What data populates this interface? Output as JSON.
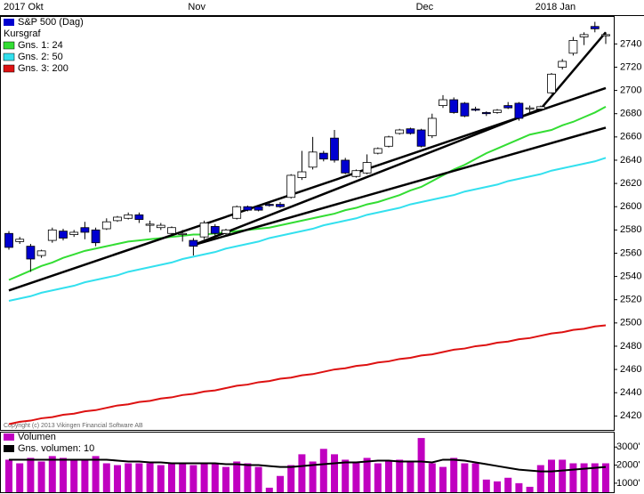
{
  "chart_data": [
    {
      "type": "candlestick",
      "name": "S&P 500 (Dag)",
      "legend_title": "Kursgraf",
      "copyright": "Copyright (c) 2013 Vikingen Financial Software AB",
      "categories": [
        "2017 Okt",
        null,
        null,
        null,
        null,
        null,
        null,
        null,
        null,
        null,
        null,
        null,
        null,
        null,
        null,
        null,
        null,
        "Nov",
        null,
        null,
        null,
        null,
        null,
        null,
        null,
        null,
        null,
        null,
        null,
        null,
        null,
        null,
        null,
        null,
        null,
        null,
        null,
        null,
        "Dec",
        null,
        null,
        null,
        null,
        null,
        null,
        null,
        null,
        null,
        null,
        "2018 Jan",
        null,
        null,
        null,
        null,
        null,
        null
      ],
      "open": [
        2577,
        2570,
        2566,
        2558,
        2571,
        2579,
        2576,
        2582,
        2580,
        2581,
        2588,
        2590,
        2593,
        2584,
        2582,
        2577,
        2576,
        2571,
        2574,
        2583,
        2577,
        2590,
        2600,
        2600,
        2602,
        2602,
        2608,
        2625,
        2634,
        2646,
        2659,
        2640,
        2626,
        2629,
        2646,
        2652,
        2663,
        2667,
        2666,
        2661,
        2687,
        2692,
        2689,
        2684,
        2681,
        2681,
        2687,
        2689,
        2684,
        2684,
        2698,
        2720,
        2732,
        2746,
        2755,
        2747
      ],
      "high": [
        2579,
        2574,
        2568,
        2563,
        2582,
        2581,
        2580,
        2587,
        2582,
        2590,
        2592,
        2595,
        2595,
        2588,
        2586,
        2583,
        2580,
        2573,
        2588,
        2585,
        2581,
        2601,
        2601,
        2601,
        2604,
        2604,
        2628,
        2648,
        2660,
        2648,
        2666,
        2642,
        2632,
        2645,
        2651,
        2661,
        2667,
        2668,
        2667,
        2680,
        2696,
        2694,
        2690,
        2686,
        2682,
        2684,
        2690,
        2690,
        2687,
        2687,
        2715,
        2727,
        2746,
        2750,
        2759,
        2750
      ],
      "low": [
        2563,
        2568,
        2544,
        2556,
        2569,
        2571,
        2574,
        2572,
        2566,
        2580,
        2587,
        2589,
        2586,
        2578,
        2580,
        2575,
        2570,
        2558,
        2572,
        2575,
        2575,
        2589,
        2596,
        2596,
        2600,
        2599,
        2607,
        2623,
        2632,
        2639,
        2638,
        2628,
        2625,
        2628,
        2645,
        2651,
        2662,
        2662,
        2651,
        2659,
        2685,
        2680,
        2677,
        2682,
        2678,
        2680,
        2684,
        2674,
        2680,
        2682,
        2697,
        2718,
        2730,
        2739,
        2750,
        2740
      ],
      "close": [
        2565,
        2572,
        2555,
        2562,
        2580,
        2573,
        2578,
        2578,
        2569,
        2587,
        2591,
        2593,
        2589,
        2585,
        2584,
        2582,
        2577,
        2566,
        2586,
        2577,
        2580,
        2600,
        2597,
        2597,
        2601,
        2600,
        2627,
        2630,
        2647,
        2641,
        2640,
        2629,
        2631,
        2638,
        2650,
        2660,
        2666,
        2663,
        2652,
        2676,
        2692,
        2681,
        2678,
        2683,
        2680,
        2683,
        2685,
        2676,
        2685,
        2686,
        2714,
        2725,
        2743,
        2748,
        2753,
        2748
      ],
      "up_color": "#ffffff",
      "down_color": "#0000d0",
      "lines": [
        {
          "name": "Gns. 1: 24",
          "color": "#33dd33",
          "values": [
            2537,
            2541,
            2545,
            2549,
            2552,
            2556,
            2559,
            2562,
            2564,
            2566,
            2568,
            2570,
            2571,
            2572,
            2573,
            2574,
            2575,
            2576,
            2576,
            2577,
            2578,
            2579,
            2580,
            2581,
            2582,
            2584,
            2586,
            2588,
            2590,
            2592,
            2594,
            2597,
            2599,
            2602,
            2604,
            2607,
            2610,
            2614,
            2617,
            2622,
            2627,
            2632,
            2636,
            2641,
            2646,
            2650,
            2654,
            2658,
            2662,
            2664,
            2666,
            2670,
            2673,
            2677,
            2681,
            2686
          ]
        },
        {
          "name": "Gns. 2: 50",
          "color": "#33e0ee",
          "values": [
            2519,
            2521,
            2523,
            2526,
            2528,
            2530,
            2532,
            2535,
            2537,
            2539,
            2541,
            2544,
            2546,
            2548,
            2550,
            2552,
            2555,
            2557,
            2559,
            2561,
            2564,
            2566,
            2568,
            2570,
            2573,
            2575,
            2577,
            2579,
            2581,
            2584,
            2586,
            2588,
            2590,
            2593,
            2595,
            2597,
            2599,
            2602,
            2604,
            2606,
            2608,
            2610,
            2613,
            2615,
            2617,
            2619,
            2622,
            2624,
            2626,
            2628,
            2631,
            2633,
            2635,
            2637,
            2639,
            2642
          ]
        },
        {
          "name": "Gns. 3: 200",
          "color": "#dd1111",
          "values": [
            2413,
            2415,
            2416,
            2418,
            2419,
            2421,
            2422,
            2424,
            2425,
            2427,
            2429,
            2430,
            2432,
            2433,
            2435,
            2436,
            2438,
            2439,
            2441,
            2442,
            2444,
            2446,
            2447,
            2449,
            2450,
            2452,
            2453,
            2455,
            2456,
            2458,
            2460,
            2461,
            2463,
            2464,
            2466,
            2467,
            2469,
            2470,
            2472,
            2473,
            2475,
            2477,
            2478,
            2480,
            2481,
            2483,
            2484,
            2486,
            2487,
            2489,
            2491,
            2492,
            2494,
            2495,
            2497,
            2498
          ]
        }
      ],
      "trend_lines": [
        {
          "x": [
            0,
            55
          ],
          "values": [
            2528,
            2702
          ]
        },
        {
          "x": [
            17,
            55
          ],
          "values": [
            2567,
            2668
          ]
        },
        {
          "x": [
            17,
            49
          ],
          "values": [
            2567,
            2684
          ]
        },
        {
          "x": [
            49,
            55
          ],
          "values": [
            2684,
            2750
          ]
        }
      ],
      "ylim": [
        2408,
        2764
      ],
      "yticks": [
        2420,
        2440,
        2460,
        2480,
        2500,
        2520,
        2540,
        2560,
        2580,
        2600,
        2620,
        2640,
        2660,
        2680,
        2700,
        2720,
        2740
      ]
    },
    {
      "type": "bar",
      "series": [
        {
          "name": "Volumen",
          "color": "#c000c0",
          "values": [
            2300,
            2100,
            2400,
            2200,
            2500,
            2400,
            2300,
            2300,
            2500,
            2100,
            2000,
            2100,
            2100,
            2100,
            2000,
            2100,
            2100,
            2000,
            2100,
            2100,
            1900,
            2200,
            2100,
            1900,
            750,
            1400,
            2000,
            2600,
            2200,
            2900,
            2600,
            2300,
            2200,
            2400,
            2100,
            2200,
            2300,
            2200,
            3500,
            2100,
            1900,
            2400,
            2100,
            2100,
            1200,
            1100,
            1300,
            1000,
            800,
            2000,
            2300,
            2300,
            2100,
            2100,
            2100,
            2100
          ]
        },
        {
          "name": "Gns. volumen: 10",
          "color": "#000000",
          "type": "line",
          "values": [
            2300,
            2300,
            2300,
            2300,
            2300,
            2300,
            2300,
            2300,
            2300,
            2300,
            2250,
            2200,
            2200,
            2150,
            2150,
            2100,
            2100,
            2100,
            2100,
            2100,
            2050,
            2050,
            2000,
            2000,
            1950,
            1900,
            1900,
            1950,
            2000,
            2050,
            2100,
            2150,
            2150,
            2200,
            2250,
            2250,
            2200,
            2200,
            2200,
            2150,
            2300,
            2300,
            2250,
            2150,
            2050,
            1950,
            1850,
            1750,
            1700,
            1650,
            1650,
            1700,
            1750,
            1800,
            1850,
            1900
          ]
        }
      ],
      "ylim": [
        500,
        3850
      ],
      "yticks": [
        {
          "value": 1000,
          "label": "1000'"
        },
        {
          "value": 2000,
          "label": "2000'"
        },
        {
          "value": 3000,
          "label": "3000'"
        }
      ]
    }
  ]
}
